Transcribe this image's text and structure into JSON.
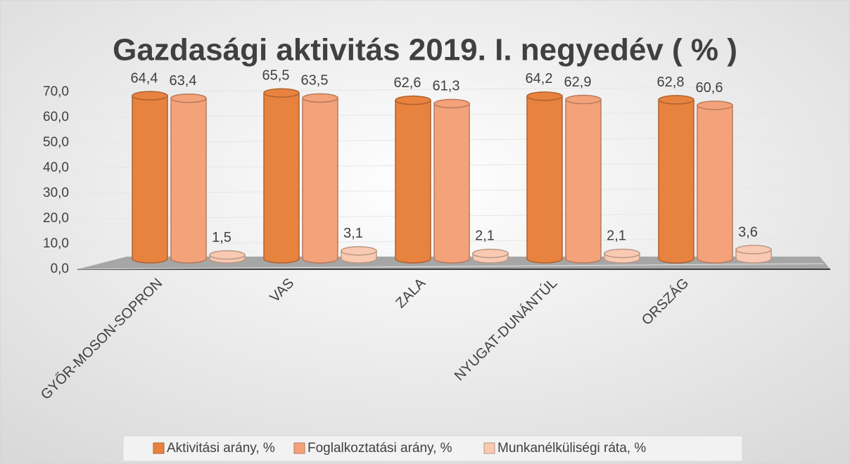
{
  "chart_data": {
    "type": "bar3d",
    "title": "Gazdasági aktivitás 2019. I. negyedév ( % )",
    "categories": [
      "GYŐR-MOSON-SOPRON",
      "VAS",
      "ZALA",
      "NYUGAT-DUNÁNTÚL",
      "ORSZÁG"
    ],
    "series": [
      {
        "name": "Aktivitási arány, %",
        "color": "#e8823f",
        "values": [
          64.4,
          65.5,
          62.6,
          64.2,
          62.8
        ],
        "value_labels": [
          "64,4",
          "65,5",
          "62,6",
          "64,2",
          "62,8"
        ]
      },
      {
        "name": "Foglalkoztatási arány, %",
        "color": "#f4a27a",
        "values": [
          63.4,
          63.5,
          61.3,
          62.9,
          60.6
        ],
        "value_labels": [
          "63,4",
          "63,5",
          "61,3",
          "62,9",
          "60,6"
        ]
      },
      {
        "name": "Munkanélküliségi ráta, %",
        "color": "#f9c9b1",
        "values": [
          1.5,
          3.1,
          2.1,
          2.1,
          3.6
        ],
        "value_labels": [
          "1,5",
          "3,1",
          "2,1",
          "2,1",
          "3,6"
        ]
      }
    ],
    "ylim": [
      0,
      70
    ],
    "yticks": [
      {
        "value": 0,
        "label": "0,0"
      },
      {
        "value": 10,
        "label": "10,0"
      },
      {
        "value": 20,
        "label": "20,0"
      },
      {
        "value": 30,
        "label": "30,0"
      },
      {
        "value": 40,
        "label": "40,0"
      },
      {
        "value": 50,
        "label": "50,0"
      },
      {
        "value": 60,
        "label": "60,0"
      },
      {
        "value": 70,
        "label": "70,0"
      }
    ],
    "legend": "bottom"
  }
}
